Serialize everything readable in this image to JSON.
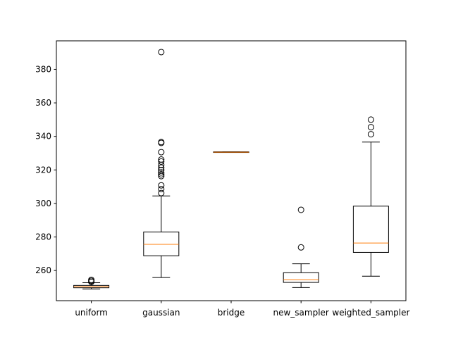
{
  "chart_data": {
    "type": "box",
    "title": "",
    "xlabel": "",
    "ylabel": "",
    "ylim": [
      242,
      397
    ],
    "yticks": [
      260,
      280,
      300,
      320,
      340,
      360,
      380
    ],
    "categories": [
      "uniform",
      "gaussian",
      "bridge",
      "new_sampler",
      "weighted_sampler"
    ],
    "boxes": [
      {
        "name": "uniform",
        "whisker_low": 249.0,
        "q1": 249.7,
        "median": 250.4,
        "q3": 251.1,
        "whisker_high": 252.7,
        "outliers": [
          253.2,
          253.8,
          254.4
        ]
      },
      {
        "name": "gaussian",
        "whisker_low": 255.8,
        "q1": 268.8,
        "median": 275.6,
        "q3": 283.0,
        "whisker_high": 304.5,
        "outliers": [
          306.2,
          308.6,
          310.8,
          316.3,
          317.4,
          318.5,
          319.9,
          321.4,
          323.0,
          325.0,
          326.2,
          330.6,
          336.1,
          336.6,
          390.3
        ]
      },
      {
        "name": "bridge",
        "whisker_low": 330.4,
        "q1": 330.4,
        "median": 330.6,
        "q3": 330.8,
        "whisker_high": 330.8,
        "outliers": []
      },
      {
        "name": "new_sampler",
        "whisker_low": 249.8,
        "q1": 252.9,
        "median": 254.5,
        "q3": 258.7,
        "whisker_high": 264.0,
        "outliers": [
          273.8,
          296.2
        ]
      },
      {
        "name": "weighted_sampler",
        "whisker_low": 256.6,
        "q1": 270.8,
        "median": 276.4,
        "q3": 298.4,
        "whisker_high": 336.6,
        "outliers": [
          341.3,
          345.5,
          350.0
        ]
      }
    ],
    "colors": {
      "box": "#000000",
      "median": "#ff7f0e",
      "background": "#ffffff"
    },
    "grid": false,
    "legend": "none"
  }
}
